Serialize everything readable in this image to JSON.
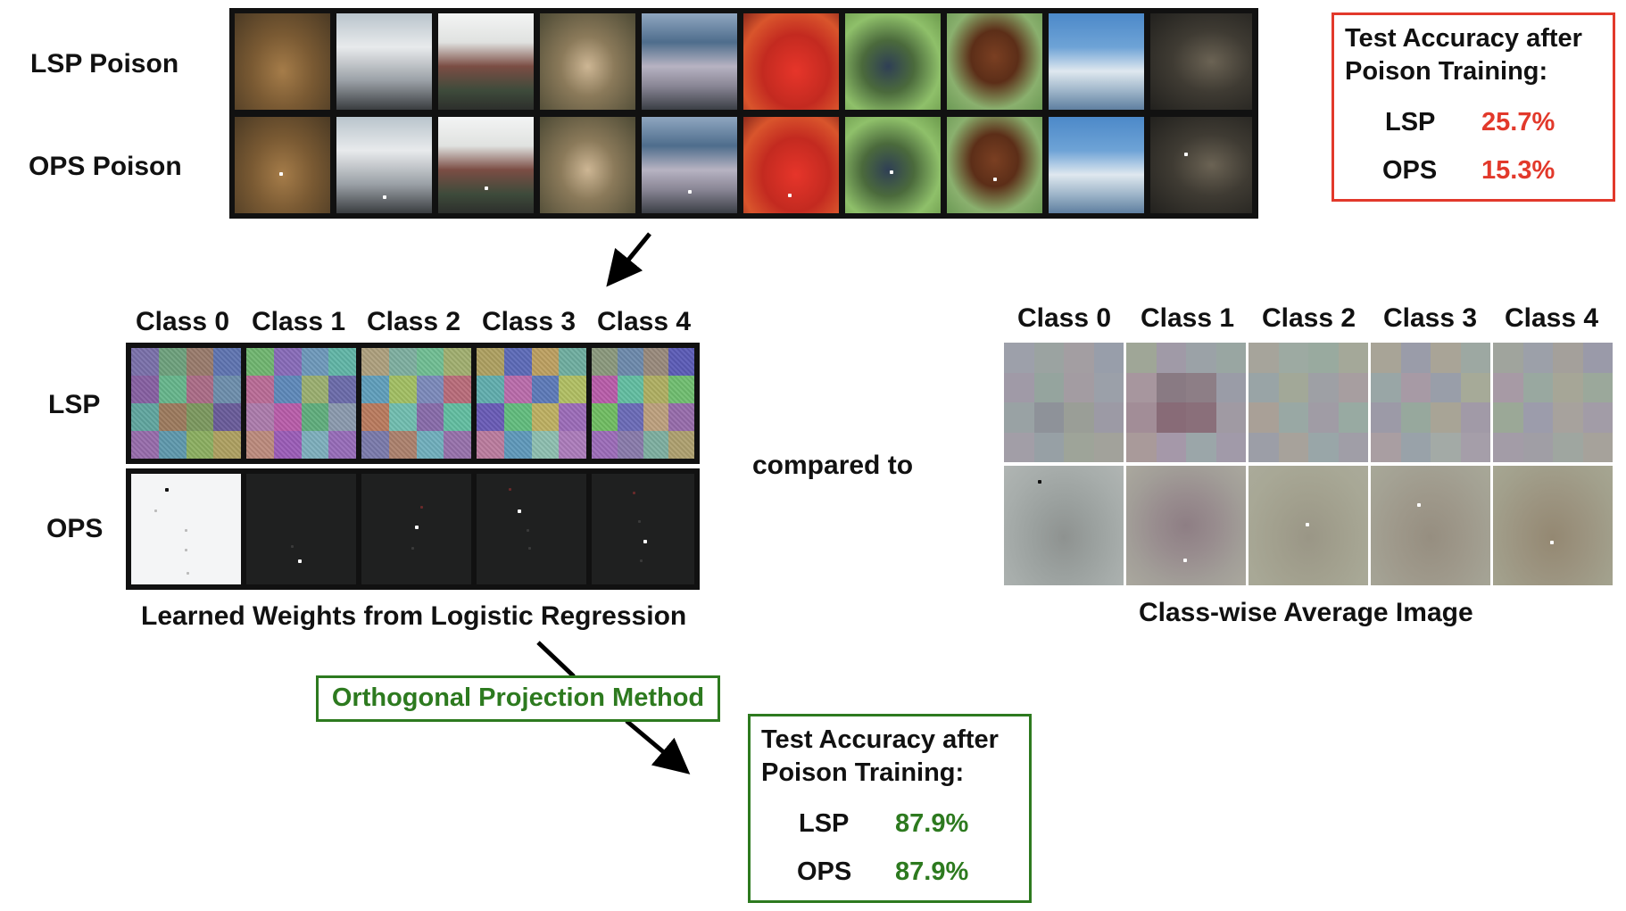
{
  "top": {
    "rows": [
      {
        "label": "LSP Poison"
      },
      {
        "label": "OPS Poison"
      }
    ],
    "images": [
      "frog-image",
      "truck-image",
      "truck-image",
      "deer-image",
      "automobile-image",
      "automobile-image",
      "bird-image",
      "horse-image",
      "ship-image",
      "cat-image"
    ],
    "accuracy": {
      "title_line1": "Test Accuracy after",
      "title_line2": "Poison Training:",
      "rows": [
        {
          "method": "LSP",
          "value": "25.7%"
        },
        {
          "method": "OPS",
          "value": "15.3%"
        }
      ],
      "color": "#e2392b"
    }
  },
  "weights_panel": {
    "class_labels": [
      "Class 0",
      "Class 1",
      "Class 2",
      "Class 3",
      "Class 4"
    ],
    "row_labels": [
      "LSP",
      "OPS"
    ],
    "caption": "Learned Weights from Logistic Regression"
  },
  "compared_to": "compared to",
  "avg_panel": {
    "class_labels": [
      "Class 0",
      "Class 1",
      "Class 2",
      "Class 3",
      "Class 4"
    ],
    "caption": "Class-wise Average Image"
  },
  "method": {
    "label": "Orthogonal Projection Method",
    "color": "#2d7a1f"
  },
  "result": {
    "title_line1": "Test Accuracy after",
    "title_line2": "Poison Training:",
    "rows": [
      {
        "method": "LSP",
        "value": "87.9%"
      },
      {
        "method": "OPS",
        "value": "87.9%"
      }
    ],
    "color": "#2d7a1f"
  }
}
